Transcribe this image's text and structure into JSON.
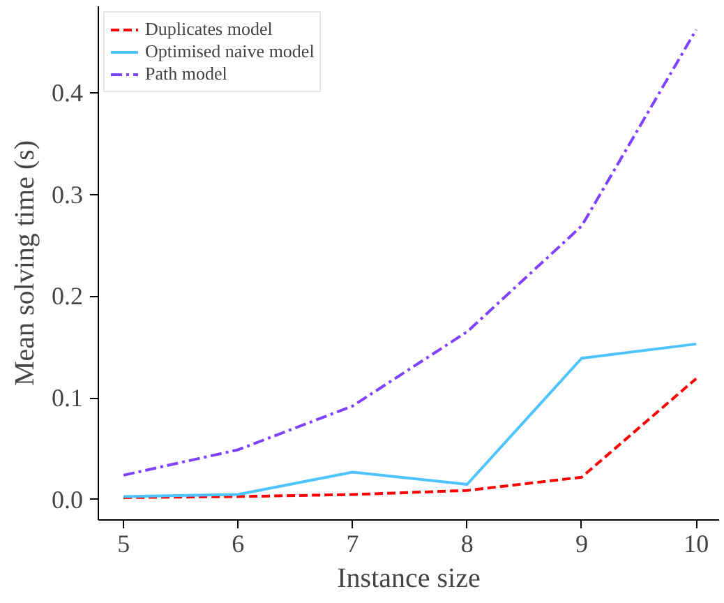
{
  "chart_data": {
    "type": "line",
    "xlabel": "Instance size",
    "ylabel": "Mean solving time (s)",
    "x": [
      5,
      6,
      7,
      8,
      9,
      10
    ],
    "series": [
      {
        "name": "Duplicates model",
        "color": "#ff0000",
        "line_style": "dashed",
        "values": [
          0.002,
          0.003,
          0.005,
          0.009,
          0.022,
          0.119
        ]
      },
      {
        "name": "Optimised naive model",
        "color": "#4dc4ff",
        "line_style": "solid",
        "values": [
          0.003,
          0.005,
          0.027,
          0.015,
          0.139,
          0.153
        ]
      },
      {
        "name": "Path model",
        "color": "#8040ff",
        "line_style": "dashdot",
        "values": [
          0.024,
          0.049,
          0.092,
          0.165,
          0.269,
          0.462
        ]
      }
    ],
    "xlim": [
      4.78,
      10.2
    ],
    "ylim": [
      -0.02,
      0.485
    ],
    "xticks": [
      5,
      6,
      7,
      8,
      9,
      10
    ],
    "yticks": [
      {
        "value": 0,
        "label": "0.0"
      },
      {
        "value": 0.1,
        "label": "0.1"
      },
      {
        "value": 0.2,
        "label": "0.2"
      },
      {
        "value": 0.3,
        "label": "0.3"
      },
      {
        "value": 0.4,
        "label": "0.4"
      }
    ],
    "legend": "top left",
    "grid": false
  }
}
